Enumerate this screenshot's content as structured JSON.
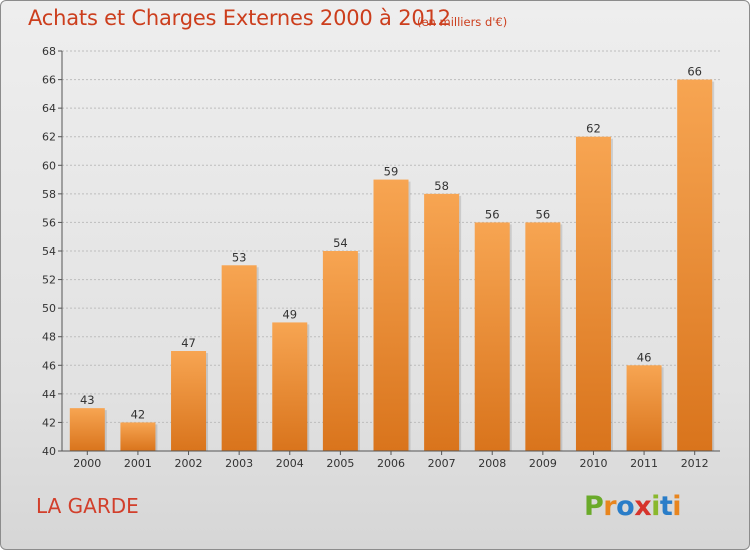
{
  "title": "Achats et Charges Externes 2000 à 2012",
  "subtitle": "(en milliers d'€)",
  "commune": "LA GARDE",
  "logo_text": "Proxiti",
  "colors": {
    "bar_top": "#f7a552",
    "bar_bottom": "#d9741c",
    "title": "#cc3e1d"
  },
  "chart_data": {
    "type": "bar",
    "title": "Achats et Charges Externes 2000 à 2012",
    "subtitle": "(en milliers d'€)",
    "categories": [
      "2000",
      "2001",
      "2002",
      "2003",
      "2004",
      "2005",
      "2006",
      "2007",
      "2008",
      "2009",
      "2010",
      "2011",
      "2012"
    ],
    "values": [
      43,
      42,
      47,
      53,
      49,
      54,
      59,
      58,
      56,
      56,
      62,
      46,
      66
    ],
    "ylim": [
      40,
      68
    ],
    "yticks": [
      40,
      42,
      44,
      46,
      48,
      50,
      52,
      54,
      56,
      58,
      60,
      62,
      64,
      66,
      68
    ],
    "grid": "horizontal dashed",
    "xlabel": "",
    "ylabel": ""
  }
}
